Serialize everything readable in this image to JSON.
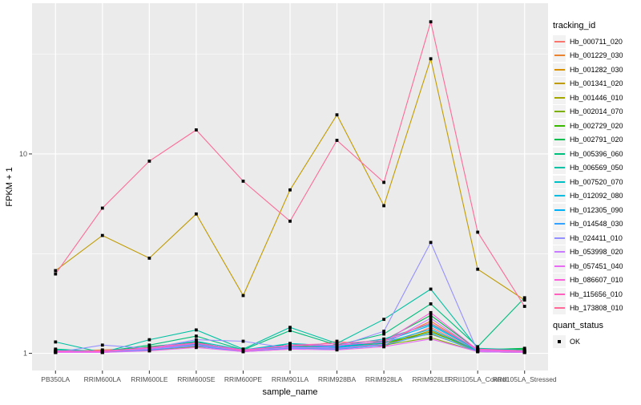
{
  "chart_data": {
    "type": "line",
    "title": "",
    "xlabel": "sample_name",
    "ylabel": "FPKM + 1",
    "y_scale": "log10",
    "ylim": [
      0.82,
      57
    ],
    "y_ticks": [
      1,
      10
    ],
    "y_minor_ticks": [
      3.162,
      31.62
    ],
    "grid": true,
    "panel_bg": "#EBEBEB",
    "grid_color": "#FFFFFF",
    "tick_label_color": "#4D4D4D",
    "point_color": "#000000",
    "legend_position": "right",
    "categories": [
      "PB350LA",
      "RRIM600LA",
      "RRIM600LE",
      "RRIM600SE",
      "RRIM600PE",
      "RRIM901LA",
      "RRIM928BA",
      "RRIM928LA",
      "RRIM928LE",
      "RRII105LA_Control",
      "RRII105LA_Stressed"
    ],
    "series": [
      {
        "name": "Hb_000711_020",
        "color": "#F8766D",
        "values": [
          1.01,
          1.02,
          1.05,
          1.1,
          1.02,
          1.05,
          1.15,
          1.08,
          1.35,
          1.03,
          1.01
        ]
      },
      {
        "name": "Hb_001229_030",
        "color": "#EA8331",
        "values": [
          1.02,
          1.04,
          1.06,
          1.13,
          1.03,
          1.08,
          1.1,
          1.12,
          1.45,
          1.04,
          1.02
        ]
      },
      {
        "name": "Hb_001282_030",
        "color": "#D89000",
        "values": [
          1.01,
          1.01,
          1.04,
          1.08,
          1.05,
          1.06,
          1.08,
          1.1,
          1.3,
          1.02,
          1.01
        ]
      },
      {
        "name": "Hb_001341_020",
        "color": "#C09B00",
        "values": [
          2.6,
          3.9,
          3.0,
          5.0,
          1.95,
          6.6,
          15.7,
          5.5,
          30.0,
          2.64,
          1.85
        ]
      },
      {
        "name": "Hb_001446_010",
        "color": "#A3A500",
        "values": [
          1.02,
          1.03,
          1.05,
          1.12,
          1.04,
          1.1,
          1.07,
          1.14,
          1.25,
          1.03,
          1.02
        ]
      },
      {
        "name": "Hb_002014_070",
        "color": "#7CAE00",
        "values": [
          1.01,
          1.02,
          1.03,
          1.09,
          1.02,
          1.07,
          1.05,
          1.1,
          1.2,
          1.02,
          1.01
        ]
      },
      {
        "name": "Hb_002729_020",
        "color": "#39B600",
        "values": [
          1.02,
          1.01,
          1.06,
          1.1,
          1.03,
          1.09,
          1.08,
          1.12,
          1.28,
          1.04,
          1.05
        ]
      },
      {
        "name": "Hb_002791_020",
        "color": "#00BB4E",
        "values": [
          1.03,
          1.02,
          1.08,
          1.14,
          1.02,
          1.12,
          1.06,
          1.16,
          1.55,
          1.04,
          1.06
        ]
      },
      {
        "name": "Hb_005396_060",
        "color": "#00BF7D",
        "values": [
          1.05,
          1.02,
          1.1,
          1.22,
          1.04,
          1.3,
          1.1,
          1.25,
          1.77,
          1.08,
          1.9
        ]
      },
      {
        "name": "Hb_006569_050",
        "color": "#00C1A3",
        "values": [
          1.14,
          1.01,
          1.17,
          1.31,
          1.05,
          1.35,
          1.12,
          1.48,
          2.1,
          1.06,
          1.04
        ]
      },
      {
        "name": "Hb_007520_070",
        "color": "#00BFC4",
        "values": [
          1.04,
          1.02,
          1.07,
          1.15,
          1.04,
          1.12,
          1.09,
          1.18,
          1.4,
          1.05,
          1.03
        ]
      },
      {
        "name": "Hb_012092_080",
        "color": "#00BAE0",
        "values": [
          1.02,
          1.03,
          1.05,
          1.11,
          1.03,
          1.08,
          1.07,
          1.13,
          1.32,
          1.03,
          1.02
        ]
      },
      {
        "name": "Hb_012305_090",
        "color": "#00B0F6",
        "values": [
          1.03,
          1.02,
          1.06,
          1.12,
          1.04,
          1.1,
          1.08,
          1.15,
          1.38,
          1.04,
          1.02
        ]
      },
      {
        "name": "Hb_014548_030",
        "color": "#35A2FF",
        "values": [
          1.02,
          1.01,
          1.04,
          1.09,
          1.02,
          1.06,
          1.05,
          1.1,
          1.26,
          1.02,
          1.01
        ]
      },
      {
        "name": "Hb_024411_010",
        "color": "#9590FF",
        "values": [
          1.01,
          1.1,
          1.06,
          1.17,
          1.15,
          1.06,
          1.08,
          1.29,
          3.6,
          1.02,
          1.01
        ]
      },
      {
        "name": "Hb_053998_020",
        "color": "#C77CFF",
        "values": [
          1.02,
          1.02,
          1.05,
          1.1,
          1.03,
          1.07,
          1.06,
          1.11,
          1.5,
          1.03,
          1.02
        ]
      },
      {
        "name": "Hb_057451_040",
        "color": "#E76BF3",
        "values": [
          1.01,
          1.01,
          1.03,
          1.07,
          1.02,
          1.05,
          1.04,
          1.08,
          1.18,
          1.02,
          1.01
        ]
      },
      {
        "name": "Hb_086607_010",
        "color": "#FA62DB",
        "values": [
          1.02,
          1.03,
          1.06,
          1.12,
          1.04,
          1.09,
          1.1,
          1.14,
          1.6,
          1.04,
          1.02
        ]
      },
      {
        "name": "Hb_115656_010",
        "color": "#FF62BC",
        "values": [
          1.03,
          1.02,
          1.07,
          1.13,
          1.03,
          1.1,
          1.12,
          1.16,
          1.42,
          1.05,
          1.03
        ]
      },
      {
        "name": "Hb_173808_010",
        "color": "#FF6A98",
        "values": [
          2.5,
          5.35,
          9.2,
          13.2,
          7.3,
          4.6,
          11.7,
          7.2,
          46.0,
          4.05,
          1.72
        ]
      }
    ],
    "legend": {
      "tracking_title": "tracking_id",
      "quant_title": "quant_status",
      "quant_label": "OK"
    }
  }
}
